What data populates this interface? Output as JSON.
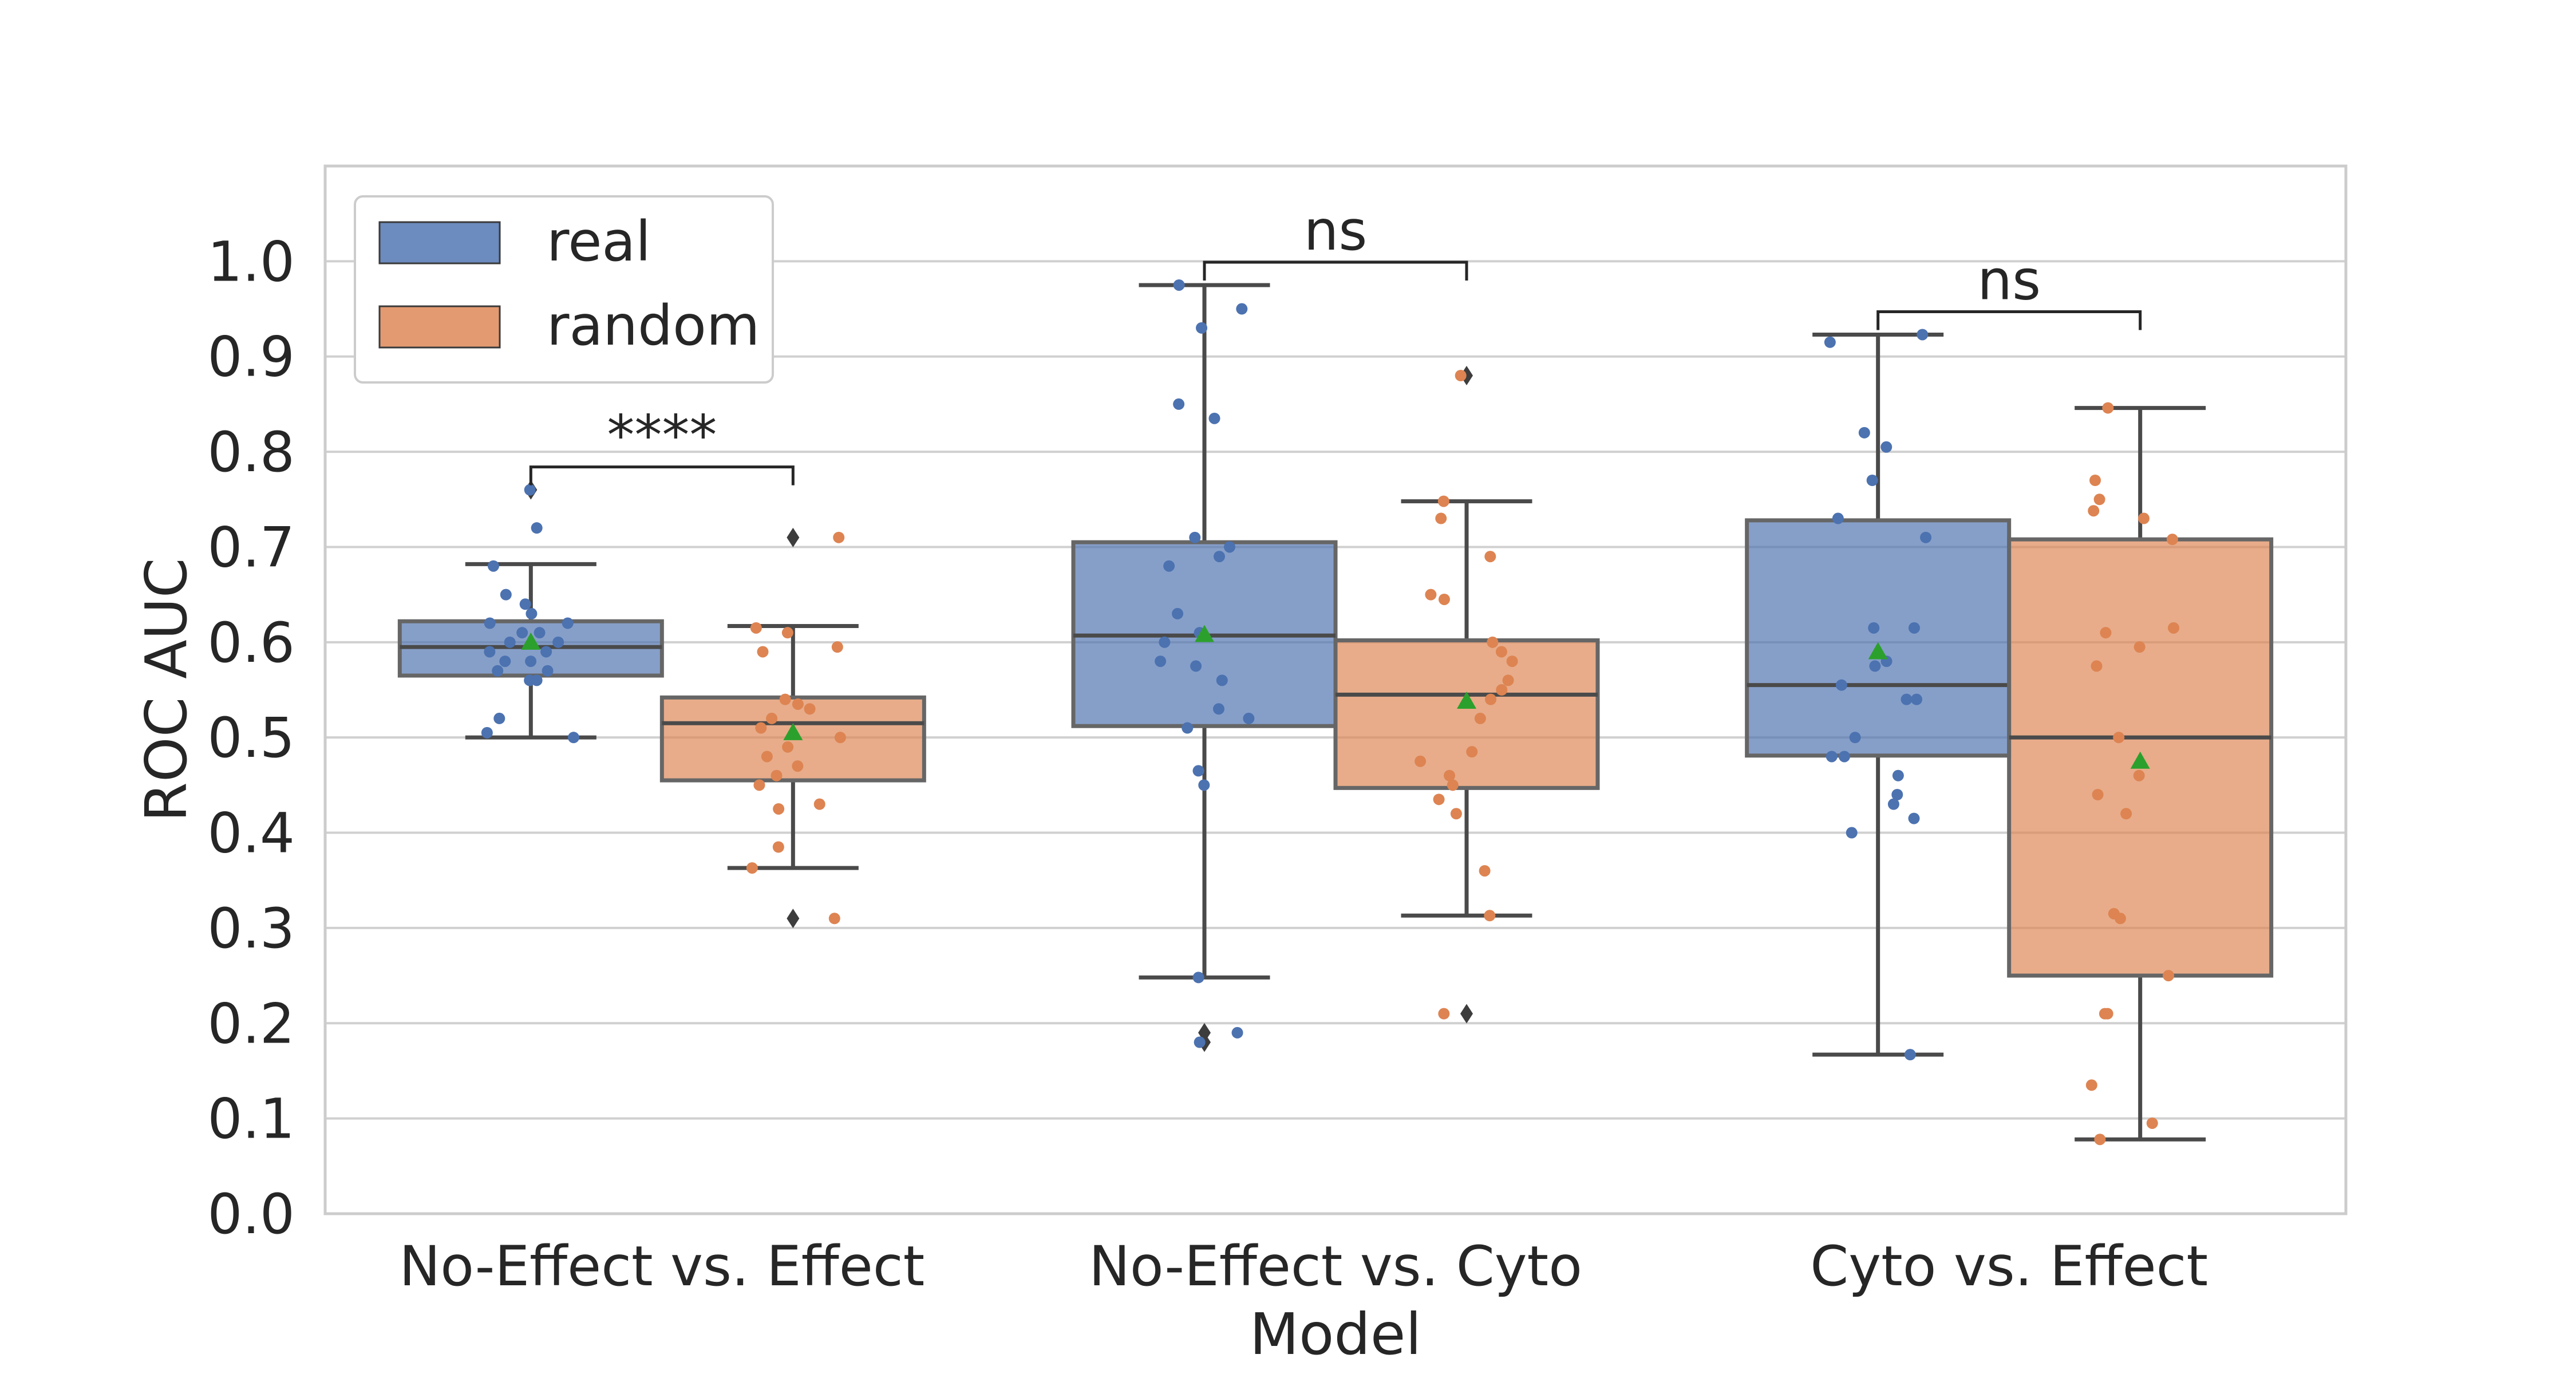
{
  "chart_data": {
    "type": "box",
    "title": "",
    "xlabel": "Model",
    "ylabel": "ROC AUC",
    "ylim": [
      0.0,
      1.1
    ],
    "yticks": [
      "0.0",
      "0.1",
      "0.2",
      "0.3",
      "0.4",
      "0.5",
      "0.6",
      "0.7",
      "0.8",
      "0.9",
      "1.0"
    ],
    "grid": true,
    "legend": {
      "placement": "upper-left",
      "entries": [
        "real",
        "random"
      ]
    },
    "colors": {
      "real": "#4c72b0",
      "random": "#dd8452",
      "mean_marker": "#2ca02c",
      "box_edge": "#4a4a4a",
      "grid": "#d0d0d0"
    },
    "categories": [
      "No-Effect vs. Effect",
      "No-Effect vs. Cyto",
      "Cyto vs. Effect"
    ],
    "groups": [
      {
        "category": "No-Effect vs. Effect",
        "significance": "****",
        "boxes": [
          {
            "series": "real",
            "q1": 0.565,
            "median": 0.595,
            "q3": 0.622,
            "whisker_low": 0.5,
            "whisker_high": 0.682,
            "mean": 0.6,
            "outliers": [
              0.76
            ],
            "points": [
              0.76,
              0.72,
              0.68,
              0.65,
              0.64,
              0.63,
              0.62,
              0.62,
              0.61,
              0.61,
              0.6,
              0.6,
              0.59,
              0.59,
              0.58,
              0.58,
              0.57,
              0.57,
              0.56,
              0.56,
              0.52,
              0.505,
              0.5
            ]
          },
          {
            "series": "random",
            "q1": 0.455,
            "median": 0.515,
            "q3": 0.542,
            "whisker_low": 0.363,
            "whisker_high": 0.617,
            "mean": 0.505,
            "outliers": [
              0.71,
              0.31
            ],
            "points": [
              0.71,
              0.615,
              0.61,
              0.595,
              0.59,
              0.54,
              0.535,
              0.53,
              0.52,
              0.51,
              0.5,
              0.49,
              0.48,
              0.47,
              0.46,
              0.45,
              0.43,
              0.425,
              0.385,
              0.363,
              0.31
            ]
          }
        ]
      },
      {
        "category": "No-Effect vs. Cyto",
        "significance": "ns",
        "boxes": [
          {
            "series": "real",
            "q1": 0.512,
            "median": 0.607,
            "q3": 0.705,
            "whisker_low": 0.248,
            "whisker_high": 0.975,
            "mean": 0.608,
            "outliers": [
              0.19,
              0.18
            ],
            "points": [
              0.975,
              0.95,
              0.93,
              0.85,
              0.835,
              0.71,
              0.7,
              0.69,
              0.68,
              0.63,
              0.61,
              0.6,
              0.58,
              0.575,
              0.56,
              0.53,
              0.52,
              0.51,
              0.465,
              0.45,
              0.248,
              0.19,
              0.18
            ]
          },
          {
            "series": "random",
            "q1": 0.447,
            "median": 0.545,
            "q3": 0.602,
            "whisker_low": 0.313,
            "whisker_high": 0.748,
            "mean": 0.538,
            "outliers": [
              0.88,
              0.21
            ],
            "points": [
              0.88,
              0.748,
              0.73,
              0.69,
              0.65,
              0.645,
              0.6,
              0.59,
              0.58,
              0.56,
              0.55,
              0.54,
              0.52,
              0.485,
              0.475,
              0.46,
              0.45,
              0.435,
              0.42,
              0.36,
              0.313,
              0.21
            ]
          }
        ]
      },
      {
        "category": "Cyto vs. Effect",
        "significance": "ns",
        "boxes": [
          {
            "series": "real",
            "q1": 0.481,
            "median": 0.555,
            "q3": 0.728,
            "whisker_low": 0.167,
            "whisker_high": 0.923,
            "mean": 0.59,
            "outliers": [],
            "points": [
              0.923,
              0.915,
              0.82,
              0.805,
              0.77,
              0.73,
              0.71,
              0.615,
              0.615,
              0.58,
              0.575,
              0.555,
              0.54,
              0.54,
              0.5,
              0.48,
              0.48,
              0.46,
              0.44,
              0.43,
              0.415,
              0.4,
              0.167
            ]
          },
          {
            "series": "random",
            "q1": 0.25,
            "median": 0.5,
            "q3": 0.708,
            "whisker_low": 0.078,
            "whisker_high": 0.846,
            "mean": 0.475,
            "outliers": [],
            "points": [
              0.846,
              0.77,
              0.75,
              0.738,
              0.73,
              0.708,
              0.615,
              0.61,
              0.595,
              0.575,
              0.5,
              0.46,
              0.44,
              0.42,
              0.315,
              0.31,
              0.25,
              0.21,
              0.21,
              0.135,
              0.095,
              0.078
            ]
          }
        ]
      }
    ]
  }
}
